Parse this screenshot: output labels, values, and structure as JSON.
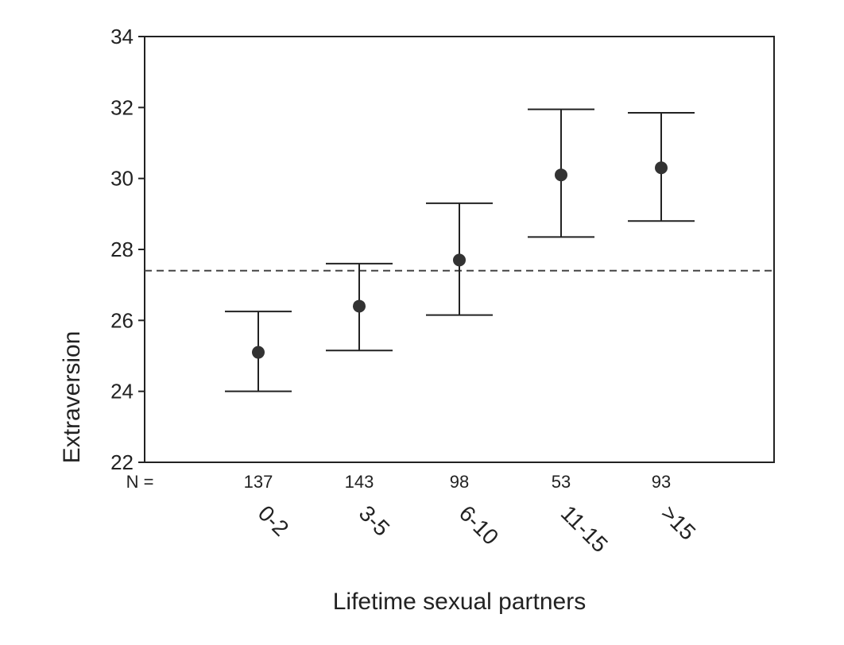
{
  "chart_data": {
    "type": "scatter",
    "subtype": "mean-with-error-bars",
    "title": "",
    "xlabel": "Lifetime sexual partners",
    "ylabel": "Extraversion",
    "ylim": [
      22,
      34
    ],
    "yticks": [
      22,
      24,
      26,
      28,
      30,
      32,
      34
    ],
    "ytick_labels": [
      "22",
      "24",
      "26",
      "28",
      "30",
      "32",
      "34"
    ],
    "categories": [
      "0-2",
      "3-5",
      "6-10",
      "11-15",
      ">15"
    ],
    "n_prefix": "N =",
    "n_values": [
      "137",
      "143",
      "98",
      "53",
      "93"
    ],
    "means": [
      25.1,
      26.4,
      27.7,
      30.1,
      30.3
    ],
    "ci_lower": [
      24.0,
      25.15,
      26.15,
      28.35,
      28.8
    ],
    "ci_upper": [
      26.25,
      27.6,
      29.3,
      31.95,
      31.85
    ],
    "reference_line": {
      "y": 27.4,
      "style": "dashed"
    },
    "grid": false,
    "legend": "none",
    "colors": {
      "marker": "#333333",
      "line": "#222222"
    }
  }
}
